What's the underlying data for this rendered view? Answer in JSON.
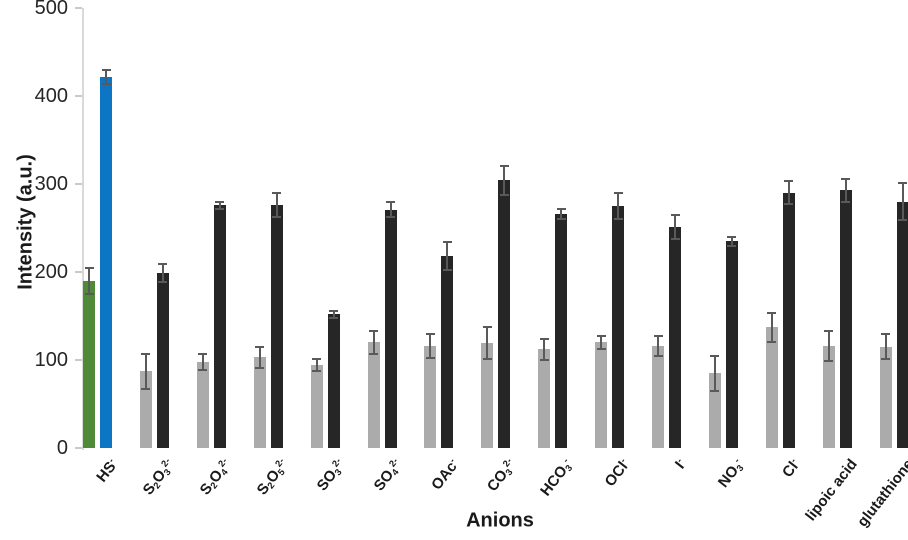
{
  "chart_data": {
    "type": "bar",
    "title": "",
    "xlabel": "Anions",
    "ylabel": "Intensity (a.u.)",
    "ylim": [
      0,
      500
    ],
    "yticks": [
      0,
      100,
      200,
      300,
      400,
      500
    ],
    "grid": "off",
    "legend": "none",
    "error_bars": true,
    "categories": [
      "HS^-",
      "S_2O_3^2-",
      "S_2O_4^2-",
      "S_2O_5^2-",
      "SO_3^2-",
      "SO_4^2-",
      "OAc^-",
      "CO_3^2-",
      "HCO_3^-",
      "OCl^-",
      "I^-",
      "NO_3^-",
      "Cl^-",
      "lipoic acid",
      "glutathione"
    ],
    "series": [
      {
        "name": "series-1-gray",
        "color": "#ababab",
        "first_bar_color": "#4e8a38",
        "values": [
          190,
          87,
          98,
          103,
          94,
          120,
          116,
          119,
          112,
          120,
          116,
          85,
          137,
          116,
          115
        ],
        "errors": [
          15,
          20,
          9,
          12,
          7,
          13,
          14,
          18,
          12,
          7,
          11,
          20,
          16,
          17,
          14
        ]
      },
      {
        "name": "series-2-black",
        "color": "#262626",
        "first_bar_color": "#0d76c4",
        "values": [
          422,
          199,
          276,
          276,
          152,
          271,
          218,
          304,
          266,
          275,
          251,
          235,
          290,
          293,
          280
        ],
        "errors": [
          8,
          10,
          4,
          14,
          4,
          9,
          16,
          16,
          6,
          15,
          14,
          5,
          13,
          13,
          21
        ]
      }
    ],
    "colors": {
      "error_bar": "#595959",
      "axis_line": "#d9d9d9",
      "tick_mark": "#c9c9c9"
    }
  }
}
